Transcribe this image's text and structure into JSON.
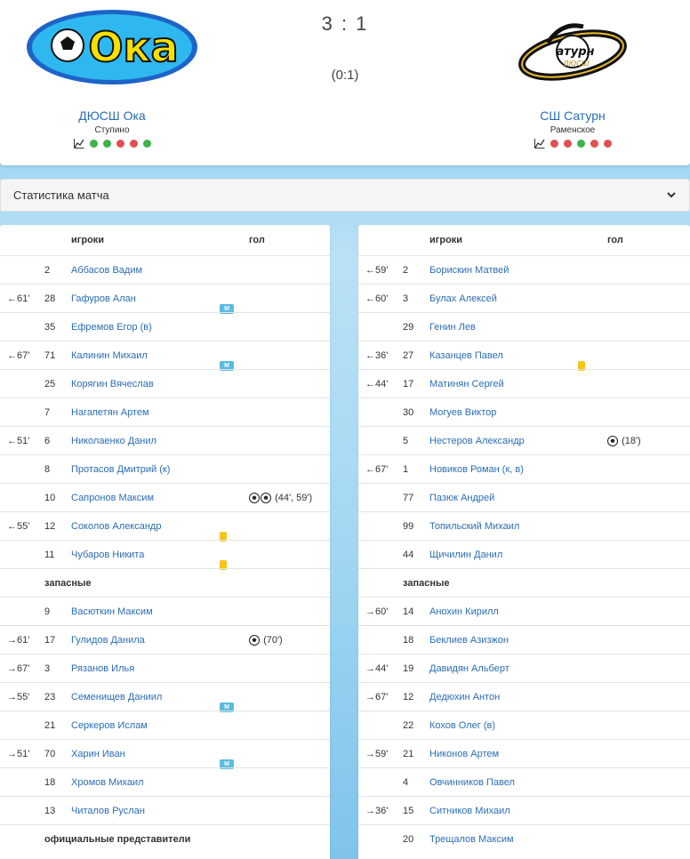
{
  "match": {
    "score": "3 : 1",
    "half_time": "(0:1)"
  },
  "home": {
    "name": "ДЮСШ Ока",
    "city": "Ступино",
    "logo_text": "Ока",
    "form": [
      "#3cb44b",
      "#3cb44b",
      "#e05050",
      "#e05050",
      "#3cb44b"
    ]
  },
  "away": {
    "name": "СШ Сатурн",
    "city": "Раменское",
    "logo_text": "атурн",
    "logo_sub": "ДЮСШ",
    "form": [
      "#e05050",
      "#e05050",
      "#3cb44b",
      "#e05050",
      "#e05050"
    ]
  },
  "stats_label": "Статистика матча",
  "columns": {
    "players": "игроки",
    "goal": "гол"
  },
  "home_rows": [
    {
      "sub": "",
      "num": "2",
      "name": "Аббасов Вадим"
    },
    {
      "sub": "←61'",
      "num": "28",
      "name": "Гафуров Алан",
      "badge": "M"
    },
    {
      "sub": "",
      "num": "35",
      "name": "Ефремов Егор (в)"
    },
    {
      "sub": "←67'",
      "num": "71",
      "name": "Калинин Михаил",
      "badge": "M"
    },
    {
      "sub": "",
      "num": "25",
      "name": "Корягин Вячеслав"
    },
    {
      "sub": "",
      "num": "7",
      "name": "Нагапетян Артем"
    },
    {
      "sub": "←51'",
      "num": "6",
      "name": "Николаенко Данил"
    },
    {
      "sub": "",
      "num": "8",
      "name": "Протасов Дмитрий (к)"
    },
    {
      "sub": "",
      "num": "10",
      "name": "Сапронов Максим",
      "balls": 2,
      "goal": "(44', 59')"
    },
    {
      "sub": "←55'",
      "num": "12",
      "name": "Соколов Александр",
      "card": "yellow"
    },
    {
      "sub": "",
      "num": "11",
      "name": "Чубаров Никита",
      "card": "yellow"
    },
    {
      "section": "запасные"
    },
    {
      "sub": "",
      "num": "9",
      "name": "Васюткин Максим"
    },
    {
      "sub": "→61'",
      "num": "17",
      "name": "Гулидов Данила",
      "balls": 1,
      "goal": "(70')"
    },
    {
      "sub": "→67'",
      "num": "3",
      "name": "Рязанов Илья"
    },
    {
      "sub": "→55'",
      "num": "23",
      "name": "Семенищев Даниил",
      "badge": "M"
    },
    {
      "sub": "",
      "num": "21",
      "name": "Серкеров Ислам"
    },
    {
      "sub": "→51'",
      "num": "70",
      "name": "Харин Иван",
      "badge": "M"
    },
    {
      "sub": "",
      "num": "18",
      "name": "Хромов Михаил"
    },
    {
      "sub": "",
      "num": "13",
      "name": "Читалов Руслан"
    },
    {
      "section": "официальные представители"
    }
  ],
  "away_rows": [
    {
      "sub": "←59'",
      "num": "2",
      "name": "Борискин Матвей"
    },
    {
      "sub": "←60'",
      "num": "3",
      "name": "Булах Алексей"
    },
    {
      "sub": "",
      "num": "29",
      "name": "Генин Лев"
    },
    {
      "sub": "←36'",
      "num": "27",
      "name": "Казанцев Павел",
      "card": "yellow"
    },
    {
      "sub": "←44'",
      "num": "17",
      "name": "Матинян Сергей"
    },
    {
      "sub": "",
      "num": "30",
      "name": "Могуев Виктор"
    },
    {
      "sub": "",
      "num": "5",
      "name": "Нестеров Александр",
      "balls": 1,
      "goal": "(18')"
    },
    {
      "sub": "←67'",
      "num": "1",
      "name": "Новиков Роман (к, в)"
    },
    {
      "sub": "",
      "num": "77",
      "name": "Пазюк Андрей"
    },
    {
      "sub": "",
      "num": "99",
      "name": "Топильский Михаил"
    },
    {
      "sub": "",
      "num": "44",
      "name": "Щичилин Данил"
    },
    {
      "section": "запасные"
    },
    {
      "sub": "→60'",
      "num": "14",
      "name": "Анохин Кирилл"
    },
    {
      "sub": "",
      "num": "18",
      "name": "Беклиев Азизжон"
    },
    {
      "sub": "→44'",
      "num": "19",
      "name": "Давидян Альберт"
    },
    {
      "sub": "→67'",
      "num": "12",
      "name": "Дедюхин Антон"
    },
    {
      "sub": "",
      "num": "22",
      "name": "Кохов Олег (в)"
    },
    {
      "sub": "→59'",
      "num": "21",
      "name": "Никонов Артем"
    },
    {
      "sub": "",
      "num": "4",
      "name": "Овчинников Павел"
    },
    {
      "sub": "→36'",
      "num": "15",
      "name": "Ситников Михаил"
    },
    {
      "sub": "",
      "num": "20",
      "name": "Трещалов Максим"
    }
  ]
}
